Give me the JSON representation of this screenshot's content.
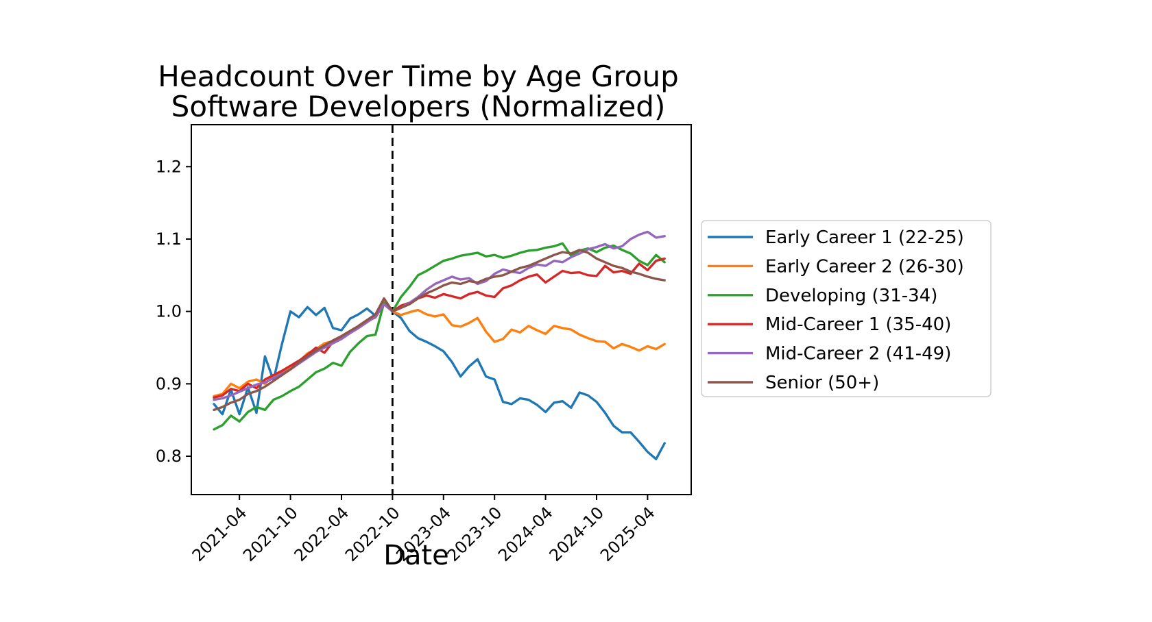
{
  "figure": {
    "title_line1": "Headcount Over Time by Age Group",
    "title_line2": "Software Developers (Normalized)",
    "xlabel": "Date"
  },
  "chart_data": {
    "type": "line",
    "title": "Headcount Over Time by Age Group — Software Developers (Normalized)",
    "xlabel": "Date",
    "ylabel": "",
    "grid": false,
    "legend_position": "right",
    "ylim": [
      0.747,
      1.258
    ],
    "xlim_index": [
      -2.66,
      56.13
    ],
    "y_ticks": [
      0.8,
      0.9,
      1.0,
      1.1,
      1.2
    ],
    "x_tick_months": [
      "2021-04",
      "2021-10",
      "2022-04",
      "2022-10",
      "2023-04",
      "2023-10",
      "2024-04",
      "2024-10",
      "2025-04"
    ],
    "vline_month": "2022-10",
    "vline_color": "#000000",
    "x": [
      "2021-01",
      "2021-02",
      "2021-03",
      "2021-04",
      "2021-05",
      "2021-06",
      "2021-07",
      "2021-08",
      "2021-09",
      "2021-10",
      "2021-11",
      "2021-12",
      "2022-01",
      "2022-02",
      "2022-03",
      "2022-04",
      "2022-05",
      "2022-06",
      "2022-07",
      "2022-08",
      "2022-09",
      "2022-10",
      "2022-11",
      "2022-12",
      "2023-01",
      "2023-02",
      "2023-03",
      "2023-04",
      "2023-05",
      "2023-06",
      "2023-07",
      "2023-08",
      "2023-09",
      "2023-10",
      "2023-11",
      "2023-12",
      "2024-01",
      "2024-02",
      "2024-03",
      "2024-04",
      "2024-05",
      "2024-06",
      "2024-07",
      "2024-08",
      "2024-09",
      "2024-10",
      "2024-11",
      "2024-12",
      "2025-01",
      "2025-02",
      "2025-03",
      "2025-04",
      "2025-05",
      "2025-06"
    ],
    "series": [
      {
        "name": "Early Career 1 (22-25)",
        "color": "#1f77b4",
        "values": [
          0.872,
          0.858,
          0.892,
          0.858,
          0.895,
          0.86,
          0.938,
          0.905,
          0.955,
          1.0,
          0.992,
          1.006,
          0.995,
          1.005,
          0.977,
          0.974,
          0.99,
          0.996,
          1.004,
          0.994,
          1.012,
          1.0,
          0.991,
          0.973,
          0.963,
          0.958,
          0.952,
          0.945,
          0.93,
          0.91,
          0.924,
          0.934,
          0.91,
          0.906,
          0.875,
          0.872,
          0.88,
          0.878,
          0.871,
          0.861,
          0.874,
          0.876,
          0.867,
          0.888,
          0.884,
          0.875,
          0.86,
          0.842,
          0.833,
          0.833,
          0.82,
          0.806,
          0.796,
          0.818
        ]
      },
      {
        "name": "Early Career 2 (26-30)",
        "color": "#ff7f0e",
        "values": [
          0.883,
          0.886,
          0.9,
          0.894,
          0.903,
          0.906,
          0.9,
          0.911,
          0.916,
          0.924,
          0.931,
          0.942,
          0.948,
          0.956,
          0.959,
          0.964,
          0.971,
          0.98,
          0.988,
          0.995,
          1.013,
          1.0,
          0.995,
          0.999,
          1.002,
          0.996,
          0.993,
          0.996,
          0.981,
          0.979,
          0.984,
          0.991,
          0.972,
          0.958,
          0.962,
          0.975,
          0.971,
          0.98,
          0.974,
          0.969,
          0.98,
          0.977,
          0.975,
          0.968,
          0.963,
          0.959,
          0.958,
          0.949,
          0.955,
          0.951,
          0.946,
          0.952,
          0.948,
          0.955
        ]
      },
      {
        "name": "Developing (31-34)",
        "color": "#2ca02c",
        "values": [
          0.837,
          0.843,
          0.856,
          0.848,
          0.861,
          0.868,
          0.864,
          0.878,
          0.883,
          0.89,
          0.896,
          0.906,
          0.916,
          0.921,
          0.929,
          0.925,
          0.944,
          0.956,
          0.966,
          0.968,
          1.012,
          1.0,
          1.02,
          1.034,
          1.05,
          1.056,
          1.063,
          1.07,
          1.073,
          1.077,
          1.079,
          1.081,
          1.076,
          1.078,
          1.074,
          1.077,
          1.081,
          1.084,
          1.085,
          1.088,
          1.09,
          1.094,
          1.077,
          1.084,
          1.087,
          1.082,
          1.088,
          1.091,
          1.085,
          1.08,
          1.07,
          1.064,
          1.078,
          1.068
        ]
      },
      {
        "name": "Mid-Career 1 (35-40)",
        "color": "#d62728",
        "values": [
          0.881,
          0.884,
          0.893,
          0.89,
          0.9,
          0.894,
          0.906,
          0.912,
          0.918,
          0.925,
          0.932,
          0.94,
          0.95,
          0.943,
          0.958,
          0.963,
          0.97,
          0.979,
          0.986,
          0.992,
          1.01,
          1.0,
          1.008,
          1.012,
          1.018,
          1.022,
          1.019,
          1.024,
          1.021,
          1.018,
          1.024,
          1.027,
          1.022,
          1.02,
          1.032,
          1.036,
          1.043,
          1.048,
          1.051,
          1.04,
          1.048,
          1.056,
          1.053,
          1.054,
          1.05,
          1.049,
          1.063,
          1.054,
          1.056,
          1.052,
          1.066,
          1.057,
          1.07,
          1.073
        ]
      },
      {
        "name": "Mid-Career 2 (41-49)",
        "color": "#9467bd",
        "values": [
          0.878,
          0.88,
          0.884,
          0.889,
          0.894,
          0.899,
          0.902,
          0.908,
          0.914,
          0.92,
          0.928,
          0.936,
          0.944,
          0.95,
          0.956,
          0.962,
          0.97,
          0.977,
          0.985,
          0.993,
          1.01,
          1.0,
          1.005,
          1.012,
          1.02,
          1.03,
          1.038,
          1.043,
          1.048,
          1.044,
          1.046,
          1.038,
          1.042,
          1.052,
          1.058,
          1.055,
          1.053,
          1.06,
          1.065,
          1.063,
          1.07,
          1.068,
          1.075,
          1.08,
          1.086,
          1.089,
          1.093,
          1.087,
          1.09,
          1.1,
          1.106,
          1.11,
          1.102,
          1.104
        ]
      },
      {
        "name": "Senior (50+)",
        "color": "#8c564b",
        "values": [
          0.864,
          0.868,
          0.874,
          0.878,
          0.886,
          0.89,
          0.896,
          0.904,
          0.912,
          0.92,
          0.93,
          0.938,
          0.946,
          0.953,
          0.96,
          0.966,
          0.973,
          0.98,
          0.988,
          0.996,
          1.018,
          1.0,
          1.005,
          1.01,
          1.018,
          1.025,
          1.03,
          1.036,
          1.04,
          1.038,
          1.042,
          1.04,
          1.045,
          1.048,
          1.05,
          1.055,
          1.06,
          1.063,
          1.068,
          1.073,
          1.078,
          1.082,
          1.08,
          1.085,
          1.081,
          1.073,
          1.068,
          1.063,
          1.06,
          1.055,
          1.052,
          1.048,
          1.045,
          1.043
        ]
      }
    ]
  }
}
